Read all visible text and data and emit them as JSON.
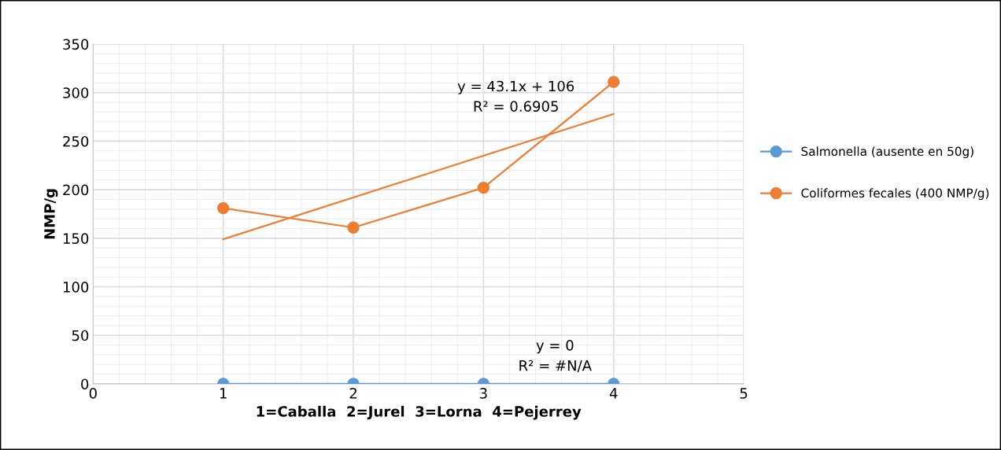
{
  "chart_data": {
    "type": "line",
    "xlabel": "1=Caballa  2=Jurel  3=Lorna  4=Pejerrey",
    "ylabel": "NMP/g",
    "x": [
      1,
      2,
      3,
      4
    ],
    "series": [
      {
        "name": "Salmonella (ausente en 50g)",
        "color": "#5b9bd5",
        "values": [
          0,
          0,
          0,
          0
        ]
      },
      {
        "name": "Coliformes fecales (400 NMP/g)",
        "color": "#ed7d31",
        "values": [
          181,
          161,
          202,
          311
        ]
      },
      {
        "type": "line",
        "color": "#ed7d31",
        "x": [
          1,
          4
        ],
        "values": [
          149,
          278
        ],
        "marker": "none"
      }
    ],
    "annotations": [
      "y = 43.1x + 106\nR² = 0.6905",
      "y = 0\nR² = #N/A"
    ],
    "xlim": [
      0,
      5
    ],
    "xticks": [
      0,
      1,
      2,
      3,
      4,
      5
    ],
    "ylim": [
      0,
      350
    ],
    "yticks": [
      0,
      50,
      100,
      150,
      200,
      250,
      300,
      350
    ],
    "grid": true,
    "legend": "right",
    "marker": "circle",
    "line_style": "solid"
  }
}
